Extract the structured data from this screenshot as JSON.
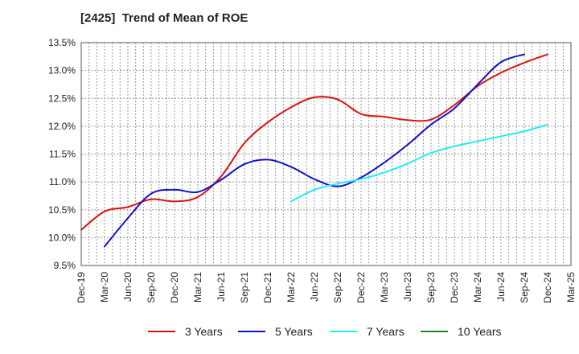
{
  "chart_data": {
    "type": "line",
    "title": "[2425]  Trend of Mean of ROE",
    "xlabel": "",
    "ylabel": "",
    "x_tick_labels": [
      "Dec-19",
      "Mar-20",
      "Jun-20",
      "Sep-20",
      "Dec-20",
      "Mar-21",
      "Jun-21",
      "Sep-21",
      "Dec-21",
      "Mar-22",
      "Jun-22",
      "Sep-22",
      "Dec-22",
      "Mar-23",
      "Jun-23",
      "Sep-23",
      "Dec-23",
      "Mar-24",
      "Jun-24",
      "Sep-24",
      "Dec-24",
      "Mar-25"
    ],
    "y_tick_labels": [
      "9.5%",
      "10.0%",
      "10.5%",
      "11.0%",
      "11.5%",
      "12.0%",
      "12.5%",
      "13.0%",
      "13.5%"
    ],
    "ylim": [
      9.5,
      13.5
    ],
    "grid": true,
    "legend_position": "bottom",
    "series": [
      {
        "name": "3 Years",
        "color": "#dd1111",
        "start_index": 0,
        "values": [
          10.14,
          10.47,
          10.55,
          10.69,
          10.65,
          10.73,
          11.1,
          11.7,
          12.07,
          12.34,
          12.52,
          12.48,
          12.22,
          12.17,
          12.11,
          12.12,
          12.38,
          12.72,
          12.96,
          13.14,
          13.29
        ]
      },
      {
        "name": "5 Years",
        "color": "#1111cc",
        "start_index": 1,
        "values": [
          9.84,
          10.35,
          10.79,
          10.86,
          10.82,
          11.04,
          11.32,
          11.4,
          11.27,
          11.05,
          10.92,
          11.08,
          11.35,
          11.67,
          12.03,
          12.32,
          12.75,
          13.15,
          13.29
        ]
      },
      {
        "name": "7 Years",
        "color": "#22eeee",
        "start_index": 9,
        "values": [
          10.65,
          10.86,
          10.97,
          11.05,
          11.17,
          11.33,
          11.52,
          11.64,
          11.73,
          11.82,
          11.91,
          12.03
        ]
      },
      {
        "name": "10 Years",
        "color": "#228822",
        "start_index": 0,
        "values": []
      }
    ]
  }
}
